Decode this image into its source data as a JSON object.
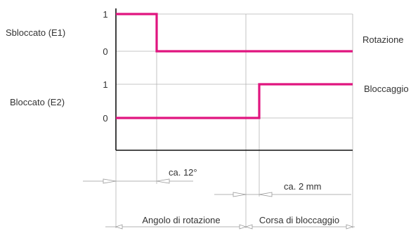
{
  "colors": {
    "signal": "#e0157f",
    "grid": "#b4b4b4",
    "axis": "#111111",
    "text": "#333333"
  },
  "rows": [
    {
      "name": "Sbloccato (E1)",
      "level_high": "1",
      "level_low": "0",
      "right_label": "Rotazione"
    },
    {
      "name": "Bloccato (E2)",
      "level_high": "1",
      "level_low": "0",
      "right_label": "Bloccaggio"
    }
  ],
  "dimensions": {
    "angle": "ca. 12°",
    "stroke": "ca. 2 mm"
  },
  "phases": {
    "rotation": "Angolo di rotazione",
    "clamping": "Corsa di bloccaggio"
  }
}
